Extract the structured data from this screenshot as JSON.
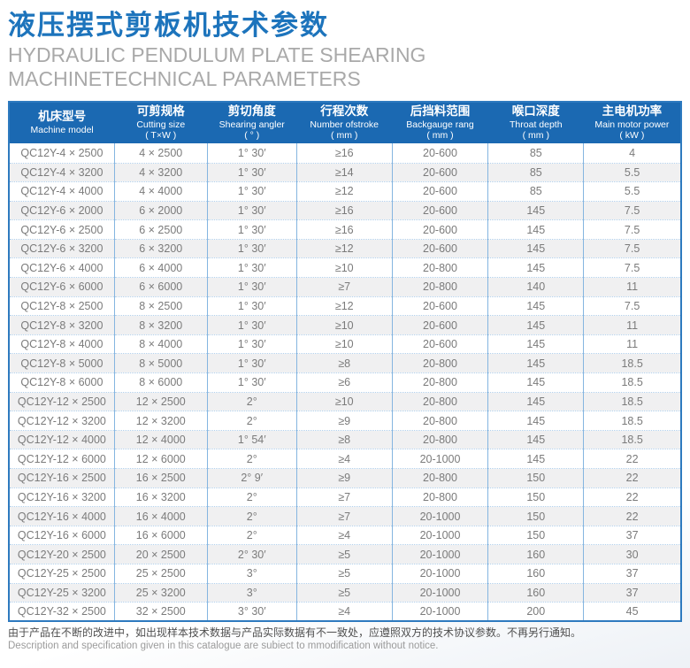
{
  "header": {
    "title_cn": "液压摆式剪板机技术参数",
    "title_en": "HYDRAULIC PENDULUM PLATE SHEARING MACHINETECHNICAL PARAMETERS"
  },
  "colors": {
    "accent_blue": "#1d74bc",
    "table_header_bg": "#1b69b2",
    "table_border": "#2e7abf",
    "row_alt_bg": "#f0f0f1",
    "subtitle_gray": "#a9a9a9"
  },
  "table": {
    "columns": [
      {
        "key": "model",
        "cn": "机床型号",
        "en": "Machine model",
        "unit": ""
      },
      {
        "key": "cutting-size",
        "cn": "可剪规格",
        "en": "Cutting size",
        "unit": "( T×W )"
      },
      {
        "key": "shearing-angle",
        "cn": "剪切角度",
        "en": "Shearing angler",
        "unit": "( ° )"
      },
      {
        "key": "strokes",
        "cn": "行程次数",
        "en": "Number ofstroke",
        "unit": "( mm )"
      },
      {
        "key": "backgauge",
        "cn": "后挡料范围",
        "en": "Backgauge rang",
        "unit": "( mm )"
      },
      {
        "key": "throat-depth",
        "cn": "喉口深度",
        "en": "Throat depth",
        "unit": "( mm )"
      },
      {
        "key": "motor-power",
        "cn": "主电机功率",
        "en": "Main motor power",
        "unit": "( kW )"
      }
    ],
    "col_widths_pct": [
      15.7,
      13.8,
      13.3,
      14.2,
      14.3,
      14.2,
      14.5
    ],
    "rows": [
      [
        "QC12Y-4 × 2500",
        "4 × 2500",
        "1° 30′",
        "≥16",
        "20-600",
        "85",
        "4"
      ],
      [
        "QC12Y-4 × 3200",
        "4 × 3200",
        "1° 30′",
        "≥14",
        "20-600",
        "85",
        "5.5"
      ],
      [
        "QC12Y-4 × 4000",
        "4 × 4000",
        "1° 30′",
        "≥12",
        "20-600",
        "85",
        "5.5"
      ],
      [
        "QC12Y-6 × 2000",
        "6 × 2000",
        "1° 30′",
        "≥16",
        "20-600",
        "145",
        "7.5"
      ],
      [
        "QC12Y-6 × 2500",
        "6 × 2500",
        "1° 30′",
        "≥16",
        "20-600",
        "145",
        "7.5"
      ],
      [
        "QC12Y-6 × 3200",
        "6 × 3200",
        "1° 30′",
        "≥12",
        "20-600",
        "145",
        "7.5"
      ],
      [
        "QC12Y-6 × 4000",
        "6 × 4000",
        "1° 30′",
        "≥10",
        "20-800",
        "145",
        "7.5"
      ],
      [
        "QC12Y-6 × 6000",
        "6 × 6000",
        "1° 30′",
        "≥7",
        "20-800",
        "140",
        "11"
      ],
      [
        "QC12Y-8 × 2500",
        "8 × 2500",
        "1° 30′",
        "≥12",
        "20-600",
        "145",
        "7.5"
      ],
      [
        "QC12Y-8 × 3200",
        "8 × 3200",
        "1° 30′",
        "≥10",
        "20-600",
        "145",
        "11"
      ],
      [
        "QC12Y-8 × 4000",
        "8 × 4000",
        "1° 30′",
        "≥10",
        "20-600",
        "145",
        "11"
      ],
      [
        "QC12Y-8 × 5000",
        "8 × 5000",
        "1° 30′",
        "≥8",
        "20-800",
        "145",
        "18.5"
      ],
      [
        "QC12Y-8 × 6000",
        "8 × 6000",
        "1° 30′",
        "≥6",
        "20-800",
        "145",
        "18.5"
      ],
      [
        "QC12Y-12 × 2500",
        "12 × 2500",
        "2°",
        "≥10",
        "20-800",
        "145",
        "18.5"
      ],
      [
        "QC12Y-12 × 3200",
        "12 × 3200",
        "2°",
        "≥9",
        "20-800",
        "145",
        "18.5"
      ],
      [
        "QC12Y-12 × 4000",
        "12 × 4000",
        "1° 54′",
        "≥8",
        "20-800",
        "145",
        "18.5"
      ],
      [
        "QC12Y-12 × 6000",
        "12 × 6000",
        "2°",
        "≥4",
        "20-1000",
        "145",
        "22"
      ],
      [
        "QC12Y-16 × 2500",
        "16 × 2500",
        "2° 9′",
        "≥9",
        "20-800",
        "150",
        "22"
      ],
      [
        "QC12Y-16 × 3200",
        "16 × 3200",
        "2°",
        "≥7",
        "20-800",
        "150",
        "22"
      ],
      [
        "QC12Y-16 × 4000",
        "16 × 4000",
        "2°",
        "≥7",
        "20-1000",
        "150",
        "22"
      ],
      [
        "QC12Y-16 × 6000",
        "16 × 6000",
        "2°",
        "≥4",
        "20-1000",
        "150",
        "37"
      ],
      [
        "QC12Y-20 × 2500",
        "20 × 2500",
        "2° 30′",
        "≥5",
        "20-1000",
        "160",
        "30"
      ],
      [
        "QC12Y-25 × 2500",
        "25 × 2500",
        "3°",
        "≥5",
        "20-1000",
        "160",
        "37"
      ],
      [
        "QC12Y-25 × 3200",
        "25 × 3200",
        "3°",
        "≥5",
        "20-1000",
        "160",
        "37"
      ],
      [
        "QC12Y-32 × 2500",
        "32 × 2500",
        "3° 30′",
        "≥4",
        "20-1000",
        "200",
        "45"
      ]
    ]
  },
  "footer": {
    "cn": "由于产品在不断的改进中，如出现样本技术数据与产品实际数据有不一致处，应遵照双方的技术协议参数。不再另行通知。",
    "en": "Description and specification given in this catalogue are subiect to mmodification without notice."
  }
}
